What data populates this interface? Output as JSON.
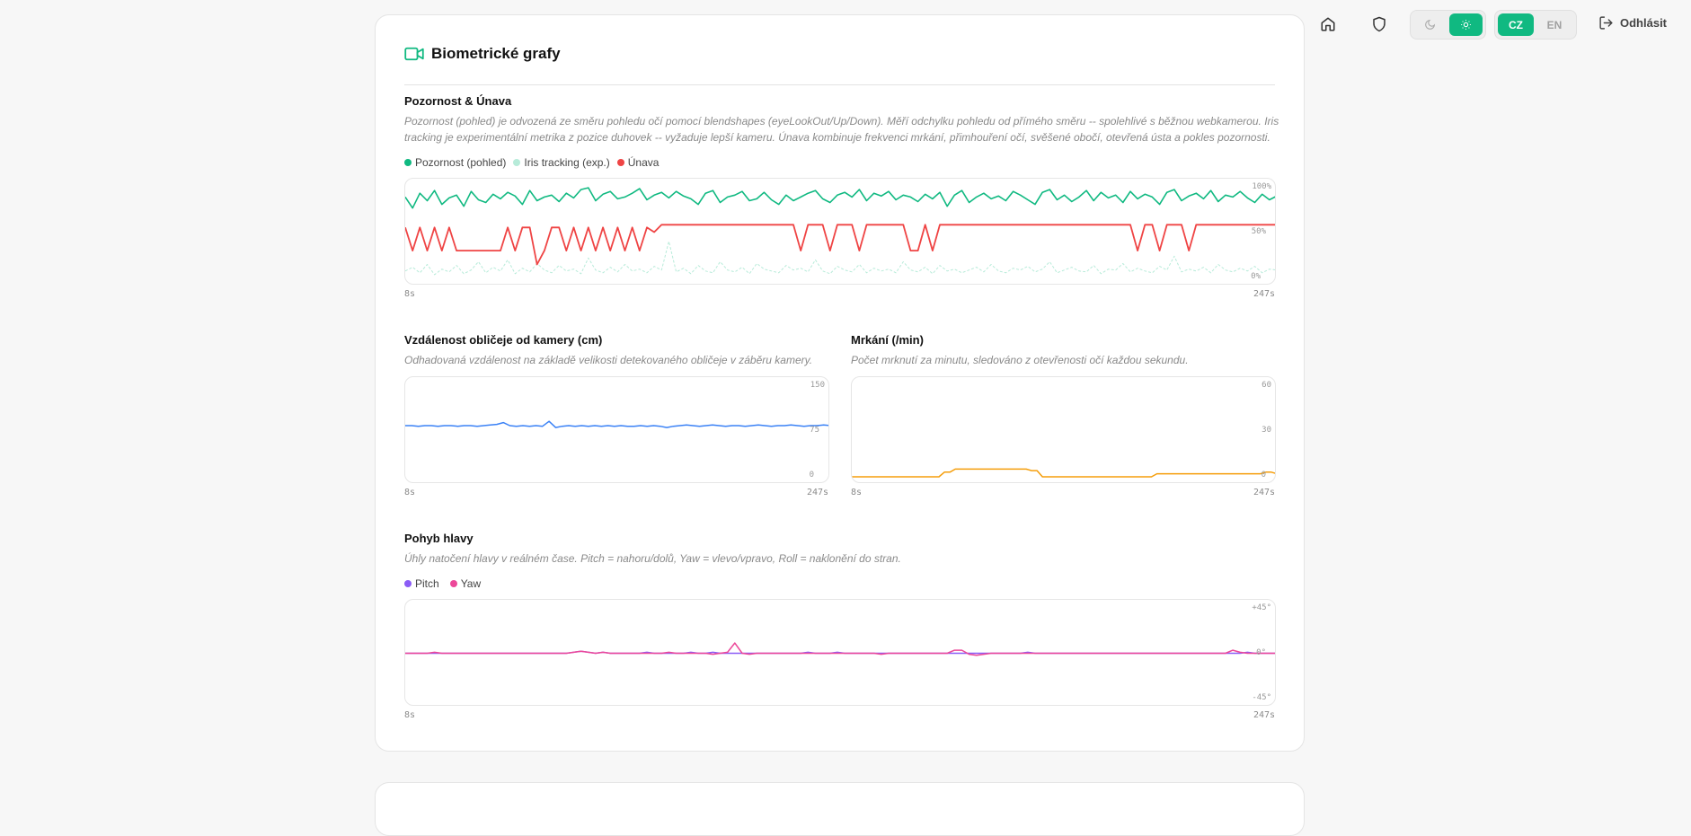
{
  "nav": {
    "language": {
      "cz": "CZ",
      "en": "EN",
      "active": "CZ"
    },
    "theme": {
      "active": "light"
    },
    "logout_label": "Odhlásit"
  },
  "card": {
    "title": "Biometrické grafy"
  },
  "attention": {
    "title": "Pozornost & Únava",
    "desc_line1": "Pozornost (pohled) je odvozená ze směru pohledu očí pomocí blendshapes (eyeLookOut/Up/Down). Měří odchylku pohledu od přímého směru -- spolehlivé s běžnou webkamerou. Iris",
    "desc_line2": "tracking je experimentální metrika z pozice duhovek -- vyžaduje lepší kameru. Únava kombinuje frekvenci mrkání, přimhouření očí, svěšené obočí, otevřená ústa a pokles pozornosti.",
    "legend": [
      {
        "label": "Pozornost (pohled)",
        "color": "#10b981"
      },
      {
        "label": "Iris tracking (exp.)",
        "color": "#b7ebd9"
      },
      {
        "label": "Únava",
        "color": "#ef4444"
      }
    ],
    "ticks": [
      "100%",
      "50%",
      "0%"
    ],
    "x_start": "8s",
    "x_end": "247s"
  },
  "distance": {
    "title": "Vzdálenost obličeje od kamery (cm)",
    "desc": "Odhadovaná vzdálenost na základě velikosti detekovaného obličeje v záběru kamery.",
    "ticks": [
      "150",
      "75",
      "0"
    ],
    "x_start": "8s",
    "x_end": "247s"
  },
  "blinks": {
    "title": "Mrkání (/min)",
    "desc": "Počet mrknutí za minutu, sledováno z otevřenosti očí každou sekundu.",
    "ticks": [
      "60",
      "30",
      "0"
    ],
    "x_start": "8s",
    "x_end": "247s"
  },
  "head": {
    "title": "Pohyb hlavy",
    "desc": "Úhly natočení hlavy v reálném čase. Pitch = nahoru/dolů, Yaw = vlevo/vpravo, Roll = naklonění do stran.",
    "legend": [
      {
        "label": "Pitch",
        "color": "#8b5cf6"
      },
      {
        "label": "Yaw",
        "color": "#ec4899"
      }
    ],
    "ticks": [
      "+45°",
      "0°",
      "-45°"
    ],
    "x_start": "8s",
    "x_end": "247s"
  },
  "chart_data": [
    {
      "type": "line",
      "title": "Pozornost & Únava",
      "x_range": [
        8,
        247
      ],
      "ylim": [
        0,
        100
      ],
      "series": [
        {
          "name": "Pozornost (pohled)",
          "color": "#10b981",
          "values": [
            88,
            76,
            92,
            84,
            95,
            80,
            87,
            90,
            78,
            94,
            85,
            82,
            91,
            86,
            93,
            89,
            80,
            95,
            84,
            88,
            90,
            83,
            92,
            87,
            96,
            98,
            84,
            91,
            94,
            86,
            88,
            92,
            97,
            85,
            90,
            93,
            87,
            94,
            89,
            86,
            80,
            92,
            95,
            82,
            88,
            90,
            94,
            84,
            86,
            93,
            85,
            80,
            90,
            84,
            88,
            92,
            95,
            86,
            82,
            90,
            93,
            88,
            96,
            84,
            92,
            89,
            94,
            85,
            90,
            88,
            83,
            91,
            86,
            93,
            78,
            90,
            95,
            82,
            88,
            92,
            86,
            89,
            84,
            94,
            90,
            85,
            80,
            93,
            96,
            85,
            90,
            83,
            88,
            95,
            84,
            93,
            87,
            90,
            82,
            94,
            86,
            91,
            88,
            80,
            93,
            96,
            84,
            89,
            92,
            86,
            95,
            83,
            90,
            88,
            94,
            87,
            82,
            91,
            85,
            89
          ]
        },
        {
          "name": "Iris tracking (exp.)",
          "color": "#b7ebd9",
          "values": [
            8,
            12,
            6,
            15,
            4,
            10,
            7,
            14,
            5,
            9,
            18,
            6,
            12,
            8,
            20,
            5,
            11,
            7,
            16,
            9,
            6,
            14,
            8,
            10,
            5,
            22,
            9,
            6,
            12,
            7,
            15,
            8,
            10,
            6,
            13,
            9,
            40,
            7,
            11,
            5,
            14,
            8,
            6,
            18,
            9,
            7,
            12,
            5,
            16,
            10,
            8,
            6,
            14,
            9,
            11,
            7,
            20,
            8,
            5,
            13,
            9,
            7,
            15,
            6,
            11,
            8,
            10,
            6,
            18,
            9,
            7,
            12,
            5,
            14,
            8,
            10,
            6,
            9,
            12,
            7,
            15,
            8,
            6,
            11,
            9,
            13,
            7,
            10,
            18,
            6,
            9,
            12,
            8,
            7,
            14,
            5,
            10,
            9,
            16,
            7,
            11,
            8,
            6,
            13,
            9,
            24,
            7,
            10,
            8,
            12,
            6,
            15,
            9,
            7,
            11,
            8,
            13,
            6,
            10,
            9
          ]
        },
        {
          "name": "Únava",
          "color": "#ef4444",
          "values": [
            55,
            30,
            55,
            30,
            55,
            30,
            55,
            30,
            30,
            30,
            30,
            30,
            30,
            30,
            55,
            30,
            55,
            55,
            15,
            30,
            55,
            55,
            30,
            55,
            30,
            55,
            30,
            55,
            30,
            55,
            30,
            55,
            30,
            55,
            50,
            58,
            58,
            58,
            58,
            58,
            58,
            58,
            58,
            58,
            58,
            58,
            58,
            58,
            58,
            58,
            58,
            58,
            58,
            58,
            30,
            58,
            58,
            58,
            30,
            58,
            58,
            58,
            30,
            58,
            58,
            58,
            58,
            58,
            58,
            30,
            30,
            58,
            30,
            58,
            58,
            58,
            58,
            58,
            58,
            58,
            58,
            58,
            58,
            58,
            58,
            58,
            58,
            58,
            58,
            58,
            58,
            58,
            58,
            58,
            58,
            58,
            58,
            58,
            58,
            58,
            30,
            58,
            58,
            30,
            58,
            58,
            58,
            30,
            58,
            58,
            58,
            58,
            58,
            58,
            58,
            58,
            58,
            58,
            58,
            58
          ]
        }
      ]
    },
    {
      "type": "line",
      "title": "Vzdálenost obličeje od kamery (cm)",
      "x_range": [
        8,
        247
      ],
      "ylim": [
        0,
        150
      ],
      "series": [
        {
          "name": "",
          "color": "#3b82f6",
          "values": [
            83,
            83,
            82,
            83,
            83,
            82,
            83,
            83,
            82,
            83,
            83,
            82,
            83,
            84,
            85,
            88,
            83,
            82,
            83,
            82,
            83,
            82,
            90,
            80,
            82,
            83,
            82,
            83,
            82,
            83,
            82,
            83,
            82,
            83,
            82,
            82,
            83,
            82,
            83,
            82,
            80,
            82,
            83,
            84,
            83,
            82,
            83,
            84,
            83,
            82,
            83,
            83,
            82,
            83,
            84,
            83,
            82,
            83,
            83,
            84,
            83,
            82,
            83,
            83,
            84,
            83
          ]
        }
      ]
    },
    {
      "type": "line",
      "title": "Mrkání (/min)",
      "x_range": [
        8,
        247
      ],
      "ylim": [
        0,
        60
      ],
      "series": [
        {
          "name": "",
          "color": "#f59e0b",
          "values": [
            0,
            0,
            0,
            0,
            0,
            0,
            0,
            0,
            0,
            0,
            0,
            0,
            0,
            0,
            0,
            0,
            0,
            3,
            3,
            5,
            5,
            5,
            5,
            5,
            5,
            5,
            5,
            5,
            5,
            5,
            5,
            5,
            5,
            4,
            4,
            0,
            0,
            0,
            0,
            0,
            0,
            0,
            0,
            0,
            0,
            0,
            0,
            0,
            0,
            0,
            0,
            0,
            0,
            0,
            0,
            0,
            2,
            2,
            2,
            2,
            2,
            2,
            2,
            2,
            2,
            2,
            2,
            2,
            2,
            2,
            2,
            2,
            2,
            2,
            2,
            2,
            3,
            3,
            2
          ]
        }
      ]
    },
    {
      "type": "line",
      "title": "Pohyb hlavy",
      "x_range": [
        8,
        247
      ],
      "ylim": [
        -45,
        45
      ],
      "series": [
        {
          "name": "Pitch",
          "color": "#8b5cf6",
          "values": [
            0,
            0,
            0,
            0,
            0,
            0,
            0,
            0,
            0,
            0,
            0,
            0,
            0,
            0,
            0,
            0,
            0,
            0,
            0,
            0,
            0,
            0,
            0,
            1,
            2,
            1,
            0,
            1,
            0,
            0,
            0,
            0,
            0,
            1,
            0,
            0,
            0,
            0,
            0,
            1,
            0,
            0,
            1,
            0,
            0,
            0,
            0,
            0,
            0,
            0,
            0,
            0,
            0,
            0,
            0,
            1,
            0,
            0,
            0,
            1,
            0,
            0,
            0,
            0,
            0,
            0,
            0,
            0,
            0,
            0,
            0,
            0,
            0,
            0,
            0,
            0,
            0,
            0,
            0,
            0,
            0,
            0,
            0,
            0,
            0,
            1,
            0,
            0,
            0,
            0,
            0,
            0,
            0,
            0,
            0,
            0,
            0,
            0,
            0,
            0,
            0,
            0,
            0,
            0,
            0,
            0,
            0,
            0,
            0,
            0,
            0,
            0,
            0,
            0,
            0,
            1,
            0,
            0,
            0,
            0
          ]
        },
        {
          "name": "Yaw",
          "color": "#ec4899",
          "values": [
            0,
            0,
            0,
            0,
            1,
            0,
            0,
            0,
            0,
            0,
            0,
            0,
            0,
            0,
            0,
            0,
            0,
            0,
            0,
            0,
            0,
            0,
            0,
            1,
            2,
            1,
            0,
            1,
            0,
            0,
            0,
            0,
            0,
            0,
            0,
            0,
            1,
            0,
            0,
            0,
            0,
            0,
            -1,
            0,
            1,
            10,
            0,
            -1,
            0,
            0,
            0,
            0,
            0,
            0,
            0,
            0,
            0,
            0,
            0,
            0,
            0,
            0,
            0,
            0,
            0,
            -1,
            0,
            0,
            0,
            0,
            0,
            0,
            0,
            0,
            0,
            3,
            3,
            -1,
            -2,
            -1,
            0,
            0,
            0,
            0,
            0,
            0,
            0,
            0,
            0,
            0,
            0,
            0,
            0,
            0,
            0,
            0,
            0,
            0,
            0,
            0,
            0,
            0,
            0,
            0,
            0,
            0,
            0,
            0,
            0,
            0,
            0,
            0,
            0,
            3,
            1,
            0,
            0,
            0,
            0,
            0
          ]
        }
      ]
    }
  ]
}
